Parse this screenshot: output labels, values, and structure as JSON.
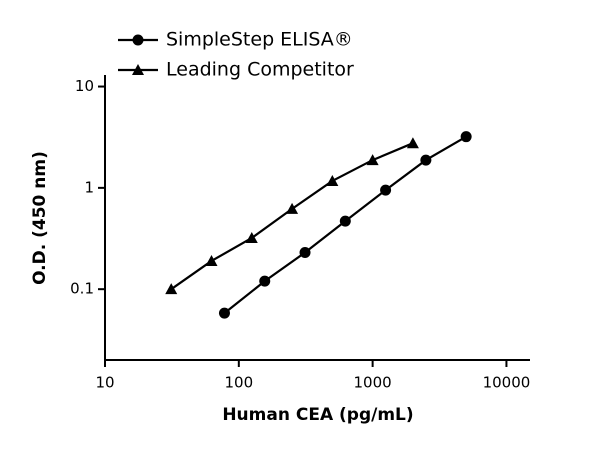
{
  "chart_data": {
    "type": "line",
    "xlabel": "Human CEA (pg/mL)",
    "ylabel": "O.D. (450 nm)",
    "xscale": "log",
    "yscale": "log",
    "xlim": [
      10,
      15000
    ],
    "ylim": [
      0.02,
      13
    ],
    "xticks": [
      10,
      100,
      1000,
      10000
    ],
    "yticks": [
      0.1,
      1,
      10
    ],
    "legend": "top-left",
    "series": [
      {
        "name": "SimpleStep ELISA®",
        "color": "#000000",
        "marker": "circle",
        "x": [
          78.125,
          156.25,
          312.5,
          625,
          1250,
          2500,
          5000
        ],
        "values": [
          0.058,
          0.12,
          0.23,
          0.47,
          0.95,
          1.88,
          3.2
        ]
      },
      {
        "name": "Leading Competitor",
        "color": "#000000",
        "marker": "triangle",
        "x": [
          31.25,
          62.5,
          125,
          250,
          500,
          1000,
          2000
        ],
        "values": [
          0.1,
          0.19,
          0.32,
          0.62,
          1.17,
          1.88,
          2.76
        ]
      }
    ]
  }
}
